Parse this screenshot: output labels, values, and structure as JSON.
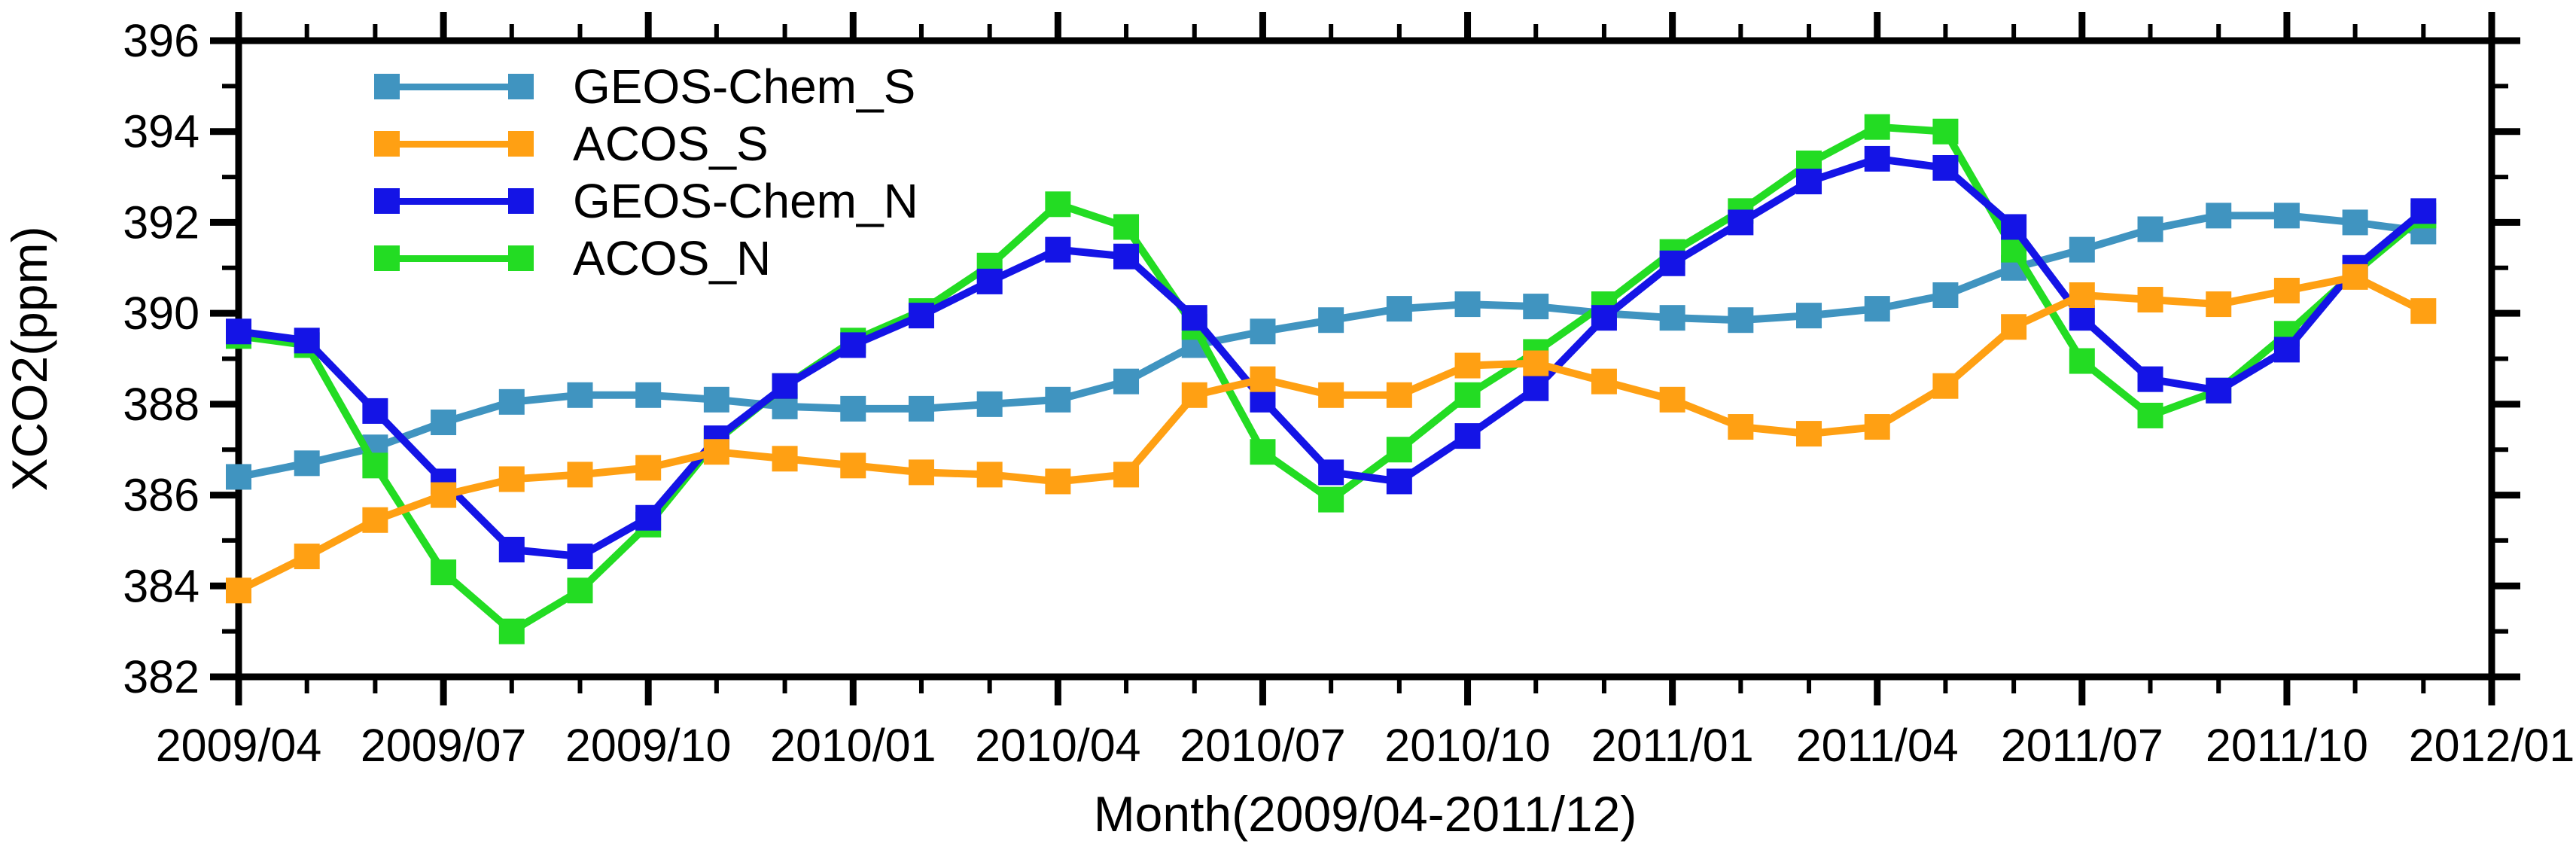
{
  "chart_data": {
    "type": "line",
    "title": "",
    "xlabel": "Month(2009/04-2011/12)",
    "ylabel": "XCO2(ppm)",
    "ylim": [
      382,
      396
    ],
    "ytick_step": 2,
    "y_tick_labels": [
      "396",
      "394",
      "392",
      "390",
      "388",
      "386",
      "384",
      "382"
    ],
    "x_major_tick_labels": [
      "2009/04",
      "2009/07",
      "2009/10",
      "2010/01",
      "2010/04",
      "2010/07",
      "2010/10",
      "2011/01",
      "2011/04",
      "2011/07",
      "2011/10",
      "2012/01"
    ],
    "x_categories": [
      "2009/04",
      "2009/05",
      "2009/06",
      "2009/07",
      "2009/08",
      "2009/09",
      "2009/10",
      "2009/11",
      "2009/12",
      "2010/01",
      "2010/02",
      "2010/03",
      "2010/04",
      "2010/05",
      "2010/06",
      "2010/07",
      "2010/08",
      "2010/09",
      "2010/10",
      "2010/11",
      "2010/12",
      "2011/01",
      "2011/02",
      "2011/03",
      "2011/04",
      "2011/05",
      "2011/06",
      "2011/07",
      "2011/08",
      "2011/09",
      "2011/10",
      "2011/11",
      "2011/12"
    ],
    "grid": false,
    "legend_position": "top-left-inside",
    "series": [
      {
        "name": "GEOS-Chem_S",
        "color": "#4094C0",
        "values": [
          386.4,
          386.7,
          387.05,
          387.6,
          388.05,
          388.2,
          388.2,
          388.1,
          387.95,
          387.9,
          387.9,
          388.0,
          388.1,
          388.5,
          389.3,
          389.6,
          389.85,
          390.1,
          390.2,
          390.15,
          390.0,
          389.9,
          389.85,
          389.95,
          390.1,
          390.4,
          391.0,
          391.4,
          391.85,
          392.15,
          392.15,
          392.0,
          391.8
        ]
      },
      {
        "name": "ACOS_S",
        "color": "#FFA013",
        "values": [
          383.9,
          384.65,
          385.45,
          386.0,
          386.35,
          386.45,
          386.6,
          386.95,
          386.8,
          386.65,
          386.5,
          386.45,
          386.3,
          386.45,
          388.2,
          388.55,
          388.2,
          388.2,
          388.85,
          388.9,
          388.5,
          388.1,
          387.5,
          387.35,
          387.5,
          388.4,
          389.7,
          390.4,
          390.3,
          390.2,
          390.5,
          390.8,
          390.05
        ]
      },
      {
        "name": "GEOS-Chem_N",
        "color": "#1414E6",
        "values": [
          389.6,
          389.4,
          387.85,
          386.3,
          384.8,
          384.65,
          385.5,
          387.25,
          388.4,
          389.3,
          389.95,
          390.7,
          391.4,
          391.25,
          389.9,
          388.1,
          386.5,
          386.3,
          387.3,
          388.35,
          389.9,
          391.1,
          392.0,
          392.9,
          393.4,
          393.2,
          391.9,
          389.9,
          388.55,
          388.3,
          389.2,
          391.0,
          392.25
        ]
      },
      {
        "name": "ACOS_N",
        "color": "#23DC23",
        "values": [
          389.5,
          389.3,
          386.65,
          384.3,
          383.0,
          383.9,
          385.35,
          387.2,
          388.4,
          389.4,
          390.05,
          391.05,
          392.4,
          391.9,
          389.7,
          386.95,
          385.9,
          387.0,
          388.2,
          389.15,
          390.2,
          391.35,
          392.25,
          393.3,
          394.1,
          394.0,
          391.4,
          388.95,
          387.75,
          388.3,
          389.55,
          390.9,
          392.15
        ]
      }
    ]
  }
}
